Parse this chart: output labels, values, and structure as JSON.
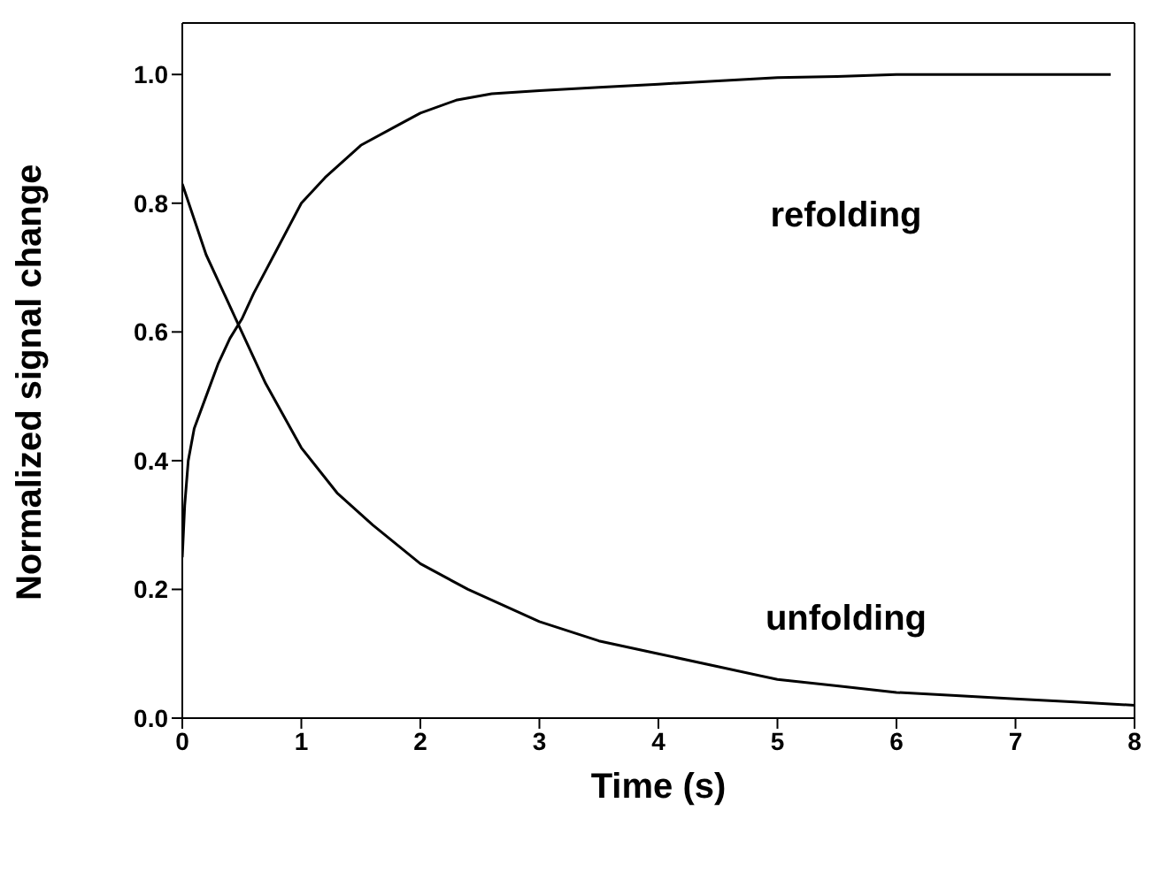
{
  "chart_data": {
    "type": "line",
    "xlabel": "Time (s)",
    "ylabel": "Normalized signal change",
    "xlim": [
      0,
      8
    ],
    "ylim": [
      0,
      1.08
    ],
    "xticks": [
      0,
      1,
      2,
      3,
      4,
      5,
      6,
      7,
      8
    ],
    "yticks": [
      {
        "value": 0,
        "label": "0.0"
      },
      {
        "value": 0.2,
        "label": "0.2"
      },
      {
        "value": 0.4,
        "label": "0.4"
      },
      {
        "value": 0.6,
        "label": "0.6"
      },
      {
        "value": 0.8,
        "label": "0.8"
      },
      {
        "value": 1,
        "label": "1.0"
      }
    ],
    "marker": "none",
    "line_style": "solid",
    "series": [
      {
        "color": "#000000",
        "x": [
          0,
          0.02,
          0.05,
          0.1,
          0.2,
          0.3,
          0.4,
          0.5,
          0.6,
          0.8,
          1,
          1.2,
          1.5,
          1.8,
          2,
          2.3,
          2.6,
          3,
          3.5,
          4,
          4.5,
          5,
          5.5,
          6,
          6.5,
          7,
          7.5,
          7.8
        ],
        "values": [
          0.25,
          0.33,
          0.4,
          0.45,
          0.5,
          0.55,
          0.59,
          0.62,
          0.66,
          0.73,
          0.8,
          0.84,
          0.89,
          0.92,
          0.94,
          0.96,
          0.97,
          0.975,
          0.98,
          0.985,
          0.99,
          0.995,
          0.997,
          1.0,
          1.0,
          1.0,
          1.0,
          1.0
        ]
      },
      {
        "color": "#000000",
        "x": [
          0,
          0.2,
          0.45,
          0.7,
          1,
          1.3,
          1.6,
          2,
          2.4,
          3,
          3.5,
          4,
          4.5,
          5,
          5.5,
          6,
          6.5,
          7,
          7.5,
          8
        ],
        "values": [
          0.83,
          0.72,
          0.62,
          0.52,
          0.42,
          0.35,
          0.3,
          0.24,
          0.2,
          0.15,
          0.12,
          0.1,
          0.08,
          0.06,
          0.05,
          0.04,
          0.035,
          0.03,
          0.025,
          0.02
        ]
      }
    ],
    "annotations": [
      "refolding",
      "unfolding"
    ]
  }
}
